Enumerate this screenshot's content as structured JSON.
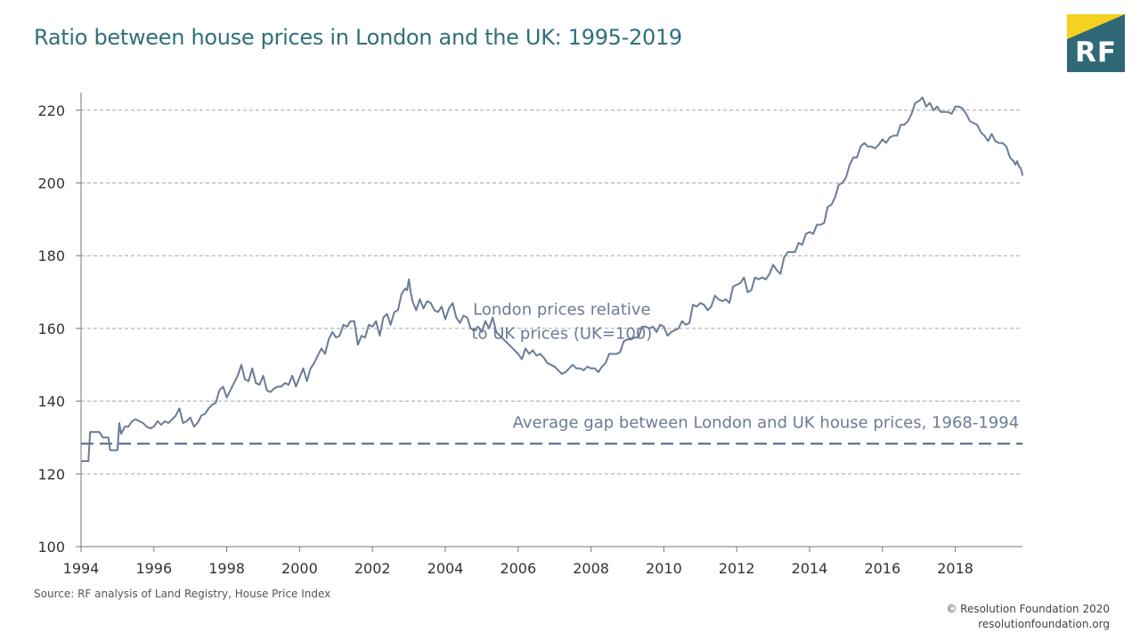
{
  "header": {
    "title": "Ratio between house prices in London and the UK: 1995-2019",
    "logo_text": "RF"
  },
  "footer": {
    "source": "Source: RF analysis of Land Registry, House Price Index",
    "copyright": "© Resolution Foundation 2020",
    "website": "resolutionfoundation.org"
  },
  "colors": {
    "title": "#2f7078",
    "series": "#6b7b97",
    "reference": "#4f5f7d",
    "grid": "#a6a6a6",
    "logo_bg": "#2f6876",
    "logo_accent": "#f4d21f"
  },
  "chart_data": {
    "type": "line",
    "title": "Ratio between house prices in London and the UK: 1995-2019",
    "xlabel": "",
    "ylabel": "",
    "xlim": [
      1994,
      2019.85
    ],
    "ylim": [
      100,
      225
    ],
    "x_ticks": [
      1994,
      1996,
      1998,
      2000,
      2002,
      2004,
      2006,
      2008,
      2010,
      2012,
      2014,
      2016,
      2018
    ],
    "y_ticks": [
      100,
      120,
      140,
      160,
      180,
      200,
      220
    ],
    "grid": "horizontal dashed",
    "series": [
      {
        "name": "London prices relative to UK prices (UK=100)",
        "points": [
          [
            1994.0,
            123.5
          ],
          [
            1994.1,
            123.5
          ],
          [
            1994.2,
            123.5
          ],
          [
            1994.25,
            131.5
          ],
          [
            1994.4,
            131.5
          ],
          [
            1994.5,
            131.5
          ],
          [
            1994.6,
            130
          ],
          [
            1994.75,
            130
          ],
          [
            1994.8,
            126.5
          ],
          [
            1995.0,
            126.5
          ],
          [
            1995.05,
            134
          ],
          [
            1995.1,
            131
          ],
          [
            1995.2,
            133
          ],
          [
            1995.3,
            133
          ],
          [
            1995.4,
            134.5
          ],
          [
            1995.5,
            135
          ],
          [
            1995.6,
            134.5
          ],
          [
            1995.7,
            134
          ],
          [
            1995.8,
            133
          ],
          [
            1995.9,
            132.5
          ],
          [
            1996.0,
            133
          ],
          [
            1996.1,
            134.5
          ],
          [
            1996.2,
            133.5
          ],
          [
            1996.3,
            134.5
          ],
          [
            1996.4,
            134
          ],
          [
            1996.5,
            135
          ],
          [
            1996.6,
            136
          ],
          [
            1996.7,
            138
          ],
          [
            1996.8,
            134
          ],
          [
            1996.9,
            134.5
          ],
          [
            1997.0,
            135.5
          ],
          [
            1997.1,
            133
          ],
          [
            1997.2,
            134
          ],
          [
            1997.3,
            136
          ],
          [
            1997.4,
            136.5
          ],
          [
            1997.5,
            138
          ],
          [
            1997.6,
            139
          ],
          [
            1997.7,
            139.5
          ],
          [
            1997.8,
            143
          ],
          [
            1997.9,
            144
          ],
          [
            1998.0,
            141
          ],
          [
            1998.1,
            143
          ],
          [
            1998.2,
            145
          ],
          [
            1998.3,
            147
          ],
          [
            1998.4,
            150
          ],
          [
            1998.5,
            146
          ],
          [
            1998.6,
            145.5
          ],
          [
            1998.7,
            149
          ],
          [
            1998.8,
            145
          ],
          [
            1998.9,
            144.5
          ],
          [
            1999.0,
            147
          ],
          [
            1999.1,
            143
          ],
          [
            1999.2,
            142.5
          ],
          [
            1999.3,
            143.5
          ],
          [
            1999.4,
            144
          ],
          [
            1999.5,
            144
          ],
          [
            1999.6,
            145
          ],
          [
            1999.7,
            144.5
          ],
          [
            1999.8,
            147
          ],
          [
            1999.9,
            144
          ],
          [
            2000.0,
            146.5
          ],
          [
            2000.1,
            149
          ],
          [
            2000.2,
            145.5
          ],
          [
            2000.3,
            149
          ],
          [
            2000.4,
            150.5
          ],
          [
            2000.5,
            152.5
          ],
          [
            2000.6,
            154.5
          ],
          [
            2000.7,
            153
          ],
          [
            2000.8,
            157
          ],
          [
            2000.9,
            159
          ],
          [
            2001.0,
            157.5
          ],
          [
            2001.1,
            158
          ],
          [
            2001.2,
            161
          ],
          [
            2001.3,
            160.5
          ],
          [
            2001.4,
            162
          ],
          [
            2001.5,
            162
          ],
          [
            2001.6,
            155.5
          ],
          [
            2001.7,
            158
          ],
          [
            2001.8,
            157.5
          ],
          [
            2001.9,
            161
          ],
          [
            2002.0,
            160.5
          ],
          [
            2002.1,
            162
          ],
          [
            2002.2,
            158
          ],
          [
            2002.3,
            163
          ],
          [
            2002.4,
            164
          ],
          [
            2002.5,
            161
          ],
          [
            2002.6,
            164.5
          ],
          [
            2002.7,
            165
          ],
          [
            2002.8,
            169.5
          ],
          [
            2002.9,
            171
          ],
          [
            2002.95,
            170.5
          ],
          [
            2003.0,
            173.5
          ],
          [
            2003.05,
            170
          ],
          [
            2003.1,
            167.5
          ],
          [
            2003.2,
            165
          ],
          [
            2003.3,
            168
          ],
          [
            2003.4,
            165.5
          ],
          [
            2003.5,
            167.5
          ],
          [
            2003.6,
            167
          ],
          [
            2003.7,
            165
          ],
          [
            2003.8,
            164.5
          ],
          [
            2003.9,
            166
          ],
          [
            2004.0,
            162.5
          ],
          [
            2004.1,
            165.5
          ],
          [
            2004.2,
            167
          ],
          [
            2004.3,
            163
          ],
          [
            2004.4,
            161.5
          ],
          [
            2004.5,
            163.5
          ],
          [
            2004.6,
            163
          ],
          [
            2004.7,
            160
          ],
          [
            2004.8,
            159.5
          ],
          [
            2004.9,
            160.5
          ],
          [
            2005.0,
            159
          ],
          [
            2005.1,
            162
          ],
          [
            2005.2,
            160
          ],
          [
            2005.3,
            163
          ],
          [
            2005.4,
            159
          ],
          [
            2005.5,
            158
          ],
          [
            2005.6,
            157
          ],
          [
            2005.7,
            156
          ],
          [
            2005.8,
            155
          ],
          [
            2005.9,
            154
          ],
          [
            2006.0,
            153
          ],
          [
            2006.1,
            151.5
          ],
          [
            2006.2,
            154.5
          ],
          [
            2006.3,
            153
          ],
          [
            2006.4,
            154
          ],
          [
            2006.5,
            152.5
          ],
          [
            2006.6,
            153
          ],
          [
            2006.7,
            152
          ],
          [
            2006.8,
            150.5
          ],
          [
            2006.9,
            150
          ],
          [
            2007.0,
            149.5
          ],
          [
            2007.1,
            148.5
          ],
          [
            2007.2,
            147.5
          ],
          [
            2007.3,
            148
          ],
          [
            2007.4,
            149
          ],
          [
            2007.5,
            150
          ],
          [
            2007.6,
            149
          ],
          [
            2007.7,
            149
          ],
          [
            2007.8,
            148.5
          ],
          [
            2007.9,
            149.5
          ],
          [
            2008.0,
            149
          ],
          [
            2008.1,
            149
          ],
          [
            2008.2,
            148
          ],
          [
            2008.3,
            149.5
          ],
          [
            2008.4,
            150.5
          ],
          [
            2008.5,
            153
          ],
          [
            2008.6,
            153
          ],
          [
            2008.7,
            153
          ],
          [
            2008.8,
            153.5
          ],
          [
            2008.9,
            156.5
          ],
          [
            2009.0,
            157
          ],
          [
            2009.1,
            157
          ],
          [
            2009.2,
            157.5
          ],
          [
            2009.3,
            157.5
          ],
          [
            2009.4,
            160.5
          ],
          [
            2009.5,
            160.5
          ],
          [
            2009.6,
            160
          ],
          [
            2009.7,
            160.5
          ],
          [
            2009.8,
            159
          ],
          [
            2009.9,
            161
          ],
          [
            2010.0,
            160.5
          ],
          [
            2010.1,
            158
          ],
          [
            2010.2,
            159
          ],
          [
            2010.3,
            159.5
          ],
          [
            2010.4,
            160
          ],
          [
            2010.5,
            162
          ],
          [
            2010.6,
            161
          ],
          [
            2010.7,
            161.5
          ],
          [
            2010.8,
            166.5
          ],
          [
            2010.9,
            166
          ],
          [
            2011.0,
            167
          ],
          [
            2011.1,
            166.5
          ],
          [
            2011.2,
            165
          ],
          [
            2011.3,
            166
          ],
          [
            2011.4,
            169
          ],
          [
            2011.5,
            168
          ],
          [
            2011.6,
            167.5
          ],
          [
            2011.7,
            168
          ],
          [
            2011.8,
            167
          ],
          [
            2011.9,
            171.5
          ],
          [
            2012.0,
            172
          ],
          [
            2012.1,
            172.5
          ],
          [
            2012.2,
            174
          ],
          [
            2012.3,
            170
          ],
          [
            2012.4,
            170.5
          ],
          [
            2012.5,
            174
          ],
          [
            2012.6,
            173.5
          ],
          [
            2012.7,
            174
          ],
          [
            2012.8,
            173.5
          ],
          [
            2012.9,
            175
          ],
          [
            2013.0,
            177.5
          ],
          [
            2013.1,
            176
          ],
          [
            2013.2,
            175
          ],
          [
            2013.3,
            179.5
          ],
          [
            2013.4,
            181
          ],
          [
            2013.5,
            181
          ],
          [
            2013.6,
            181
          ],
          [
            2013.7,
            183.5
          ],
          [
            2013.8,
            183
          ],
          [
            2013.9,
            186
          ],
          [
            2014.0,
            186.5
          ],
          [
            2014.1,
            186
          ],
          [
            2014.2,
            188.5
          ],
          [
            2014.3,
            188.5
          ],
          [
            2014.4,
            189
          ],
          [
            2014.5,
            193.5
          ],
          [
            2014.6,
            194
          ],
          [
            2014.7,
            196
          ],
          [
            2014.8,
            199.5
          ],
          [
            2014.9,
            200
          ],
          [
            2015.0,
            201.5
          ],
          [
            2015.1,
            205
          ],
          [
            2015.2,
            207
          ],
          [
            2015.3,
            207
          ],
          [
            2015.4,
            210
          ],
          [
            2015.5,
            211
          ],
          [
            2015.6,
            210
          ],
          [
            2015.7,
            210
          ],
          [
            2015.8,
            209.5
          ],
          [
            2015.9,
            210.5
          ],
          [
            2016.0,
            212
          ],
          [
            2016.1,
            211
          ],
          [
            2016.2,
            212.5
          ],
          [
            2016.3,
            213
          ],
          [
            2016.4,
            213
          ],
          [
            2016.5,
            216
          ],
          [
            2016.6,
            216
          ],
          [
            2016.7,
            217
          ],
          [
            2016.8,
            219
          ],
          [
            2016.9,
            222
          ],
          [
            2017.0,
            222.5
          ],
          [
            2017.1,
            223.5
          ],
          [
            2017.2,
            221
          ],
          [
            2017.3,
            222
          ],
          [
            2017.4,
            220
          ],
          [
            2017.5,
            221
          ],
          [
            2017.6,
            219.5
          ],
          [
            2017.7,
            219.5
          ],
          [
            2017.8,
            219.5
          ],
          [
            2017.9,
            219
          ],
          [
            2018.0,
            221
          ],
          [
            2018.1,
            221
          ],
          [
            2018.2,
            220.5
          ],
          [
            2018.3,
            219
          ],
          [
            2018.4,
            217
          ],
          [
            2018.5,
            216.5
          ],
          [
            2018.6,
            216
          ],
          [
            2018.7,
            214
          ],
          [
            2018.8,
            213
          ],
          [
            2018.9,
            211.5
          ],
          [
            2019.0,
            213.5
          ],
          [
            2019.1,
            211.5
          ],
          [
            2019.2,
            211
          ],
          [
            2019.3,
            211
          ],
          [
            2019.4,
            210
          ],
          [
            2019.5,
            207
          ],
          [
            2019.6,
            206
          ],
          [
            2019.65,
            205
          ],
          [
            2019.7,
            206
          ],
          [
            2019.75,
            204.5
          ],
          [
            2019.8,
            204
          ],
          [
            2019.85,
            202
          ]
        ]
      },
      {
        "name": "Average gap between London and UK house prices, 1968-1994",
        "y_constant": 128.3,
        "x_range": [
          1994,
          2019.85
        ],
        "style": "dashed"
      }
    ],
    "annotations": [
      {
        "lines": [
          "London prices relative",
          "to UK prices (UK=100)"
        ],
        "anchor_x": 2007.2,
        "anchor_y": 163.8
      },
      {
        "lines": [
          "Average gap between London and UK house prices, 1968-1994"
        ],
        "anchor_x": 2012.8,
        "anchor_y": 132.7
      }
    ]
  }
}
